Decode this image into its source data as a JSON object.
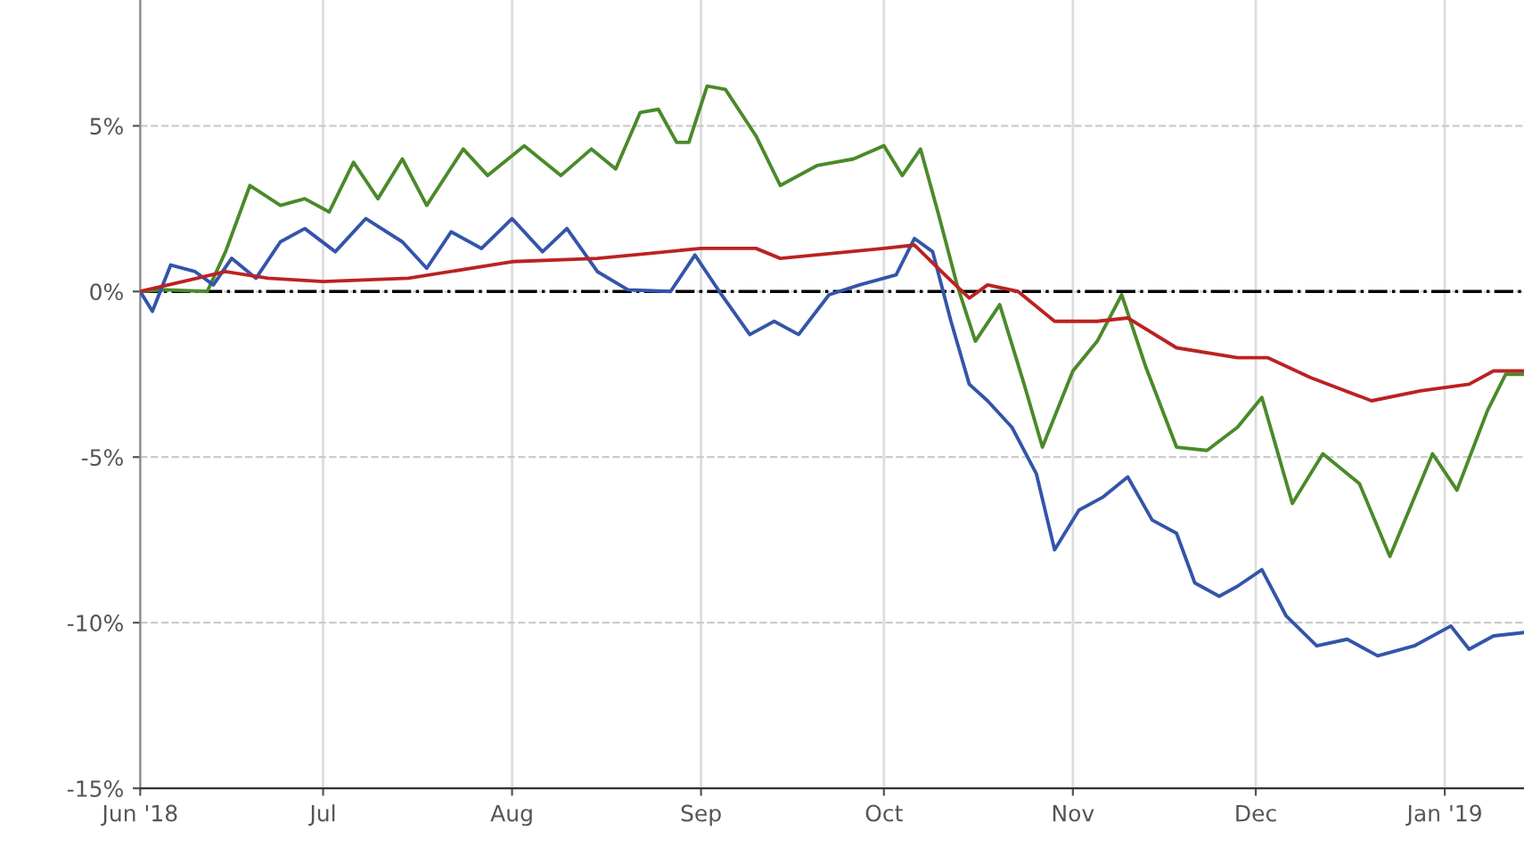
{
  "chart_data": {
    "type": "line",
    "xlim": [
      "2018-06-01",
      "2019-01-14"
    ],
    "xticks": [
      {
        "value": "2018-06-01",
        "label": "Jun '18"
      },
      {
        "value": "2018-07-01",
        "label": "Jul"
      },
      {
        "value": "2018-08-01",
        "label": "Aug"
      },
      {
        "value": "2018-09-01",
        "label": "Sep"
      },
      {
        "value": "2018-10-01",
        "label": "Oct"
      },
      {
        "value": "2018-11-01",
        "label": "Nov"
      },
      {
        "value": "2018-12-01",
        "label": "Dec"
      },
      {
        "value": "2019-01-01",
        "label": "Jan '19"
      }
    ],
    "ylim": [
      -15,
      8.8
    ],
    "yticks": [
      {
        "value": -15,
        "label": "-15%"
      },
      {
        "value": -10,
        "label": "-10%"
      },
      {
        "value": -5,
        "label": "-5%"
      },
      {
        "value": 0,
        "label": "0%"
      },
      {
        "value": 5,
        "label": "5%"
      }
    ],
    "grid": true,
    "ref_lines": [
      {
        "axis": "y",
        "value": 0,
        "color": "#000000",
        "line_style": "dashdot"
      }
    ],
    "series": [
      {
        "color": "#4a8a2a",
        "x": [
          "2018-06-01",
          "2018-06-05",
          "2018-06-12",
          "2018-06-15",
          "2018-06-19",
          "2018-06-24",
          "2018-06-28",
          "2018-07-02",
          "2018-07-06",
          "2018-07-10",
          "2018-07-14",
          "2018-07-18",
          "2018-07-24",
          "2018-07-28",
          "2018-08-03",
          "2018-08-09",
          "2018-08-14",
          "2018-08-18",
          "2018-08-22",
          "2018-08-25",
          "2018-08-28",
          "2018-08-30",
          "2018-09-02",
          "2018-09-05",
          "2018-09-10",
          "2018-09-14",
          "2018-09-20",
          "2018-09-26",
          "2018-10-01",
          "2018-10-04",
          "2018-10-07",
          "2018-10-10",
          "2018-10-13",
          "2018-10-16",
          "2018-10-20",
          "2018-10-24",
          "2018-10-27",
          "2018-11-01",
          "2018-11-05",
          "2018-11-09",
          "2018-11-13",
          "2018-11-18",
          "2018-11-23",
          "2018-11-28",
          "2018-12-02",
          "2018-12-07",
          "2018-12-12",
          "2018-12-18",
          "2018-12-23",
          "2018-12-30",
          "2019-01-03",
          "2019-01-08",
          "2019-01-11",
          "2019-01-14"
        ],
        "values": [
          0,
          0.05,
          0,
          1.2,
          3.2,
          2.6,
          2.8,
          2.4,
          3.9,
          2.8,
          4.0,
          2.6,
          4.3,
          3.5,
          4.4,
          3.5,
          4.3,
          3.7,
          5.4,
          5.5,
          4.5,
          4.5,
          6.2,
          6.1,
          4.7,
          3.2,
          3.8,
          4.0,
          4.4,
          3.5,
          4.3,
          2.3,
          0.2,
          -1.5,
          -0.4,
          -2.8,
          -4.7,
          -2.4,
          -1.5,
          -0.1,
          -2.3,
          -4.7,
          -4.8,
          -4.1,
          -3.2,
          -6.4,
          -4.9,
          -5.8,
          -8.0,
          -4.9,
          -6.0,
          -3.6,
          -2.5,
          -2.5
        ]
      },
      {
        "color": "#3355aa",
        "x": [
          "2018-06-01",
          "2018-06-03",
          "2018-06-06",
          "2018-06-10",
          "2018-06-13",
          "2018-06-16",
          "2018-06-20",
          "2018-06-24",
          "2018-06-28",
          "2018-07-03",
          "2018-07-08",
          "2018-07-14",
          "2018-07-18",
          "2018-07-22",
          "2018-07-27",
          "2018-08-01",
          "2018-08-06",
          "2018-08-10",
          "2018-08-15",
          "2018-08-20",
          "2018-08-27",
          "2018-08-31",
          "2018-09-04",
          "2018-09-09",
          "2018-09-13",
          "2018-09-17",
          "2018-09-22",
          "2018-09-27",
          "2018-10-03",
          "2018-10-06",
          "2018-10-09",
          "2018-10-12",
          "2018-10-15",
          "2018-10-18",
          "2018-10-22",
          "2018-10-26",
          "2018-10-29",
          "2018-11-02",
          "2018-11-06",
          "2018-11-10",
          "2018-11-14",
          "2018-11-18",
          "2018-11-21",
          "2018-11-25",
          "2018-11-28",
          "2018-12-02",
          "2018-12-06",
          "2018-12-11",
          "2018-12-16",
          "2018-12-21",
          "2018-12-27",
          "2019-01-02",
          "2019-01-05",
          "2019-01-09",
          "2019-01-14"
        ],
        "values": [
          0,
          -0.6,
          0.8,
          0.6,
          0.2,
          1.0,
          0.4,
          1.5,
          1.9,
          1.2,
          2.2,
          1.5,
          0.7,
          1.8,
          1.3,
          2.2,
          1.2,
          1.9,
          0.6,
          0.05,
          0,
          1.1,
          0,
          -1.3,
          -0.9,
          -1.3,
          -0.1,
          0.2,
          0.5,
          1.6,
          1.2,
          -0.9,
          -2.8,
          -3.3,
          -4.1,
          -5.5,
          -7.8,
          -6.6,
          -6.2,
          -5.6,
          -6.9,
          -7.3,
          -8.8,
          -9.2,
          -8.9,
          -8.4,
          -9.8,
          -10.7,
          -10.5,
          -11.0,
          -10.7,
          -10.1,
          -10.8,
          -10.4,
          -10.3
        ]
      },
      {
        "color": "#bb2222",
        "x": [
          "2018-06-01",
          "2018-06-08",
          "2018-06-15",
          "2018-06-22",
          "2018-07-01",
          "2018-07-15",
          "2018-08-01",
          "2018-08-15",
          "2018-09-01",
          "2018-09-10",
          "2018-09-14",
          "2018-10-01",
          "2018-10-06",
          "2018-10-11",
          "2018-10-15",
          "2018-10-18",
          "2018-10-23",
          "2018-10-29",
          "2018-11-05",
          "2018-11-10",
          "2018-11-18",
          "2018-11-28",
          "2018-12-03",
          "2018-12-10",
          "2018-12-20",
          "2018-12-28",
          "2019-01-05",
          "2019-01-09",
          "2019-01-14"
        ],
        "values": [
          0,
          0.3,
          0.6,
          0.4,
          0.3,
          0.4,
          0.9,
          1.0,
          1.3,
          1.3,
          1.0,
          1.3,
          1.4,
          0.5,
          -0.2,
          0.2,
          0,
          -0.9,
          -0.9,
          -0.8,
          -1.7,
          -2.0,
          -2.0,
          -2.6,
          -3.3,
          -3.0,
          -2.8,
          -2.4,
          -2.4
        ]
      }
    ]
  }
}
